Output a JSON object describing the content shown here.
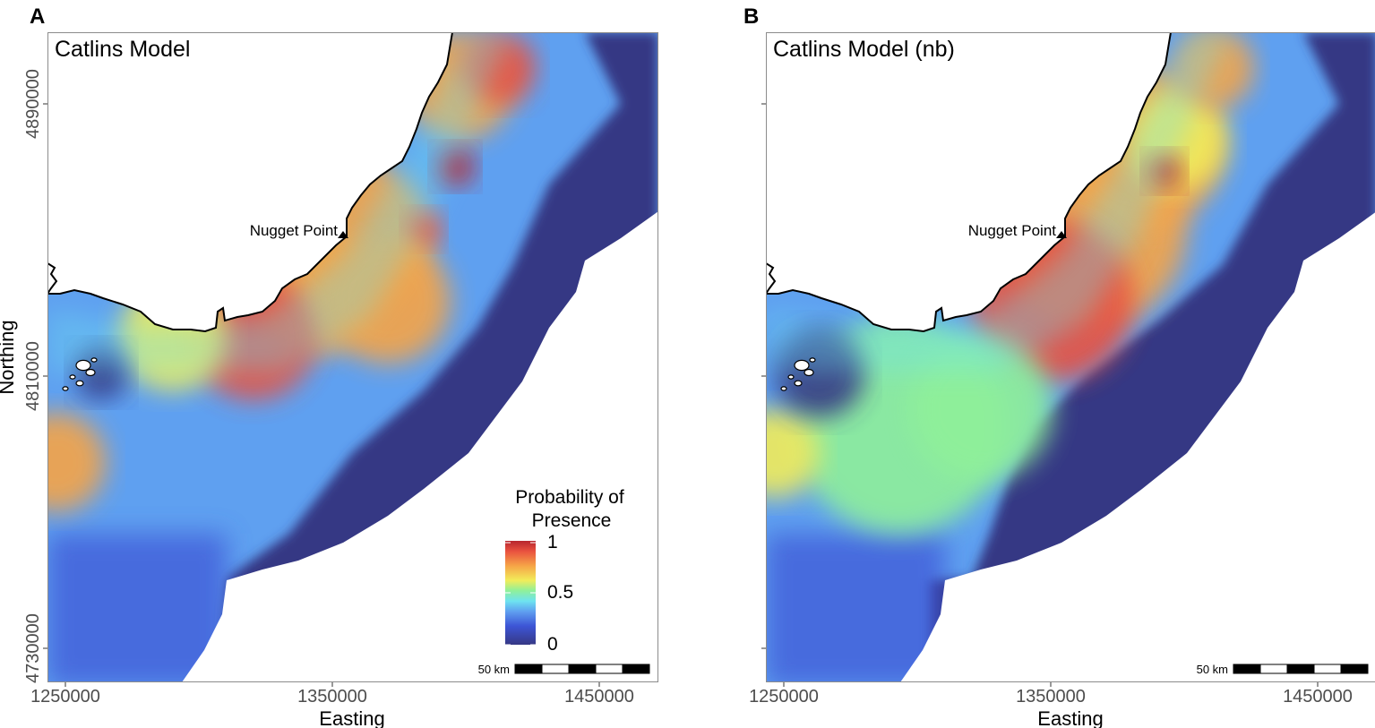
{
  "colors": {
    "deep_blue": "#363884",
    "blue": "#3d55d6",
    "light_blue": "#5fa0f0",
    "cyan": "#6ee3f0",
    "green": "#8ff09a",
    "yellow": "#f2ec5a",
    "orange": "#f6a447",
    "red": "#e9513f",
    "dark_red": "#b7262e",
    "land": "#ffffff",
    "coast": "#000000",
    "frame": "#8c8c8c"
  },
  "panels": [
    {
      "letter": "A",
      "title": "Catlins Model",
      "place_label": "Nugget Point",
      "show_y_labels": true,
      "variant": "full"
    },
    {
      "letter": "B",
      "title": "Catlins Model (nb)",
      "place_label": "Nugget Point",
      "show_y_labels": false,
      "variant": "nb"
    }
  ],
  "axes": {
    "xlabel": "Easting",
    "ylabel": "Northing",
    "x_ticks": [
      "1250000",
      "1350000",
      "1450000"
    ],
    "y_ticks": [
      "4890000",
      "4810000",
      "4730000"
    ]
  },
  "legend": {
    "title_line1": "Probability of",
    "title_line2": "Presence",
    "ticks": [
      "1",
      "0.5",
      "0"
    ],
    "range": [
      0,
      1
    ]
  },
  "scalebar": {
    "label": "50 km",
    "segments": 5
  }
}
